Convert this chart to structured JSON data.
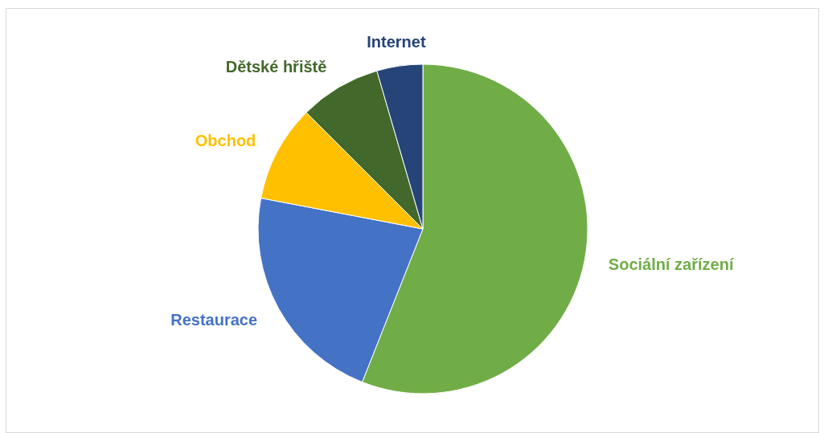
{
  "chart_data": {
    "type": "pie",
    "categories": [
      "Sociální zařízení",
      "Restaurace",
      "Obchod",
      "Dětské hřiště",
      "Internet"
    ],
    "values": [
      56,
      22,
      9.5,
      8,
      4.5
    ],
    "colors": [
      "#70ad47",
      "#4472c4",
      "#ffc000",
      "#43682b",
      "#264478"
    ],
    "legend": false
  }
}
